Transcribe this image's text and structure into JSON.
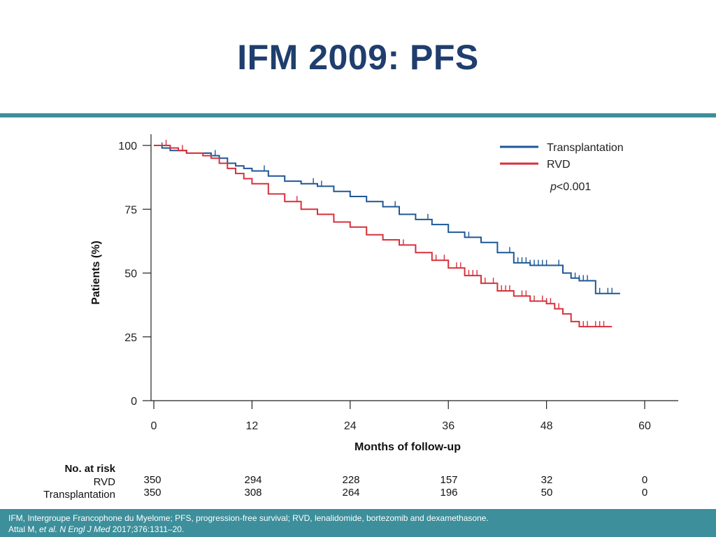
{
  "slide": {
    "title": "IFM 2009: PFS",
    "footer_line1": "IFM, Intergroupe Francophone du Myelome; PFS, progression-free survival; RVD, lenalidomide, bortezomib and dexamethasone.",
    "footer_line2_pre": "Attal M, ",
    "footer_line2_em": "et al. N Engl J Med",
    "footer_line2_post": " 2017;376:1311–20."
  },
  "risk_table": {
    "header": "No. at risk",
    "rows": [
      {
        "label": "RVD",
        "values": [
          "350",
          "294",
          "228",
          "157",
          "32",
          "0"
        ]
      },
      {
        "label": "Transplantation",
        "values": [
          "350",
          "308",
          "264",
          "196",
          "50",
          "0"
        ]
      }
    ]
  },
  "chart_data": {
    "type": "line",
    "title": "",
    "xlabel": "Months of follow-up",
    "ylabel": "Patients (%)",
    "xlim": [
      0,
      60
    ],
    "ylim": [
      0,
      100
    ],
    "xticks": [
      0,
      12,
      24,
      36,
      48,
      60
    ],
    "yticks": [
      0,
      25,
      50,
      75,
      100
    ],
    "grid": false,
    "legend_position": "top-right",
    "annotation": "p<0.001",
    "series": [
      {
        "name": "Transplantation",
        "color": "#1f5797",
        "x": [
          0,
          1,
          2,
          3,
          4,
          6,
          7,
          8,
          9,
          10,
          11,
          12,
          14,
          16,
          18,
          20,
          22,
          24,
          26,
          28,
          30,
          32,
          34,
          36,
          38,
          40,
          42,
          44,
          46,
          48,
          50,
          51,
          52,
          53,
          54,
          55,
          56,
          57
        ],
        "y": [
          100,
          99,
          98,
          98,
          97,
          97,
          96,
          95,
          93,
          92,
          91,
          90,
          88,
          86,
          85,
          84,
          82,
          80,
          78,
          76,
          73,
          71,
          69,
          66,
          64,
          62,
          58,
          54,
          53,
          53,
          50,
          48,
          47,
          47,
          42,
          42,
          42,
          42
        ]
      },
      {
        "name": "RVD",
        "color": "#d7303c",
        "x": [
          0,
          1,
          2,
          3,
          4,
          6,
          7,
          8,
          9,
          10,
          11,
          12,
          14,
          16,
          18,
          20,
          22,
          24,
          26,
          28,
          30,
          32,
          34,
          36,
          38,
          40,
          42,
          44,
          46,
          48,
          49,
          50,
          51,
          52,
          53,
          54,
          55,
          56
        ],
        "y": [
          100,
          100,
          99,
          98,
          97,
          96,
          95,
          93,
          91,
          89,
          87,
          85,
          81,
          78,
          75,
          73,
          70,
          68,
          65,
          63,
          61,
          58,
          55,
          52,
          49,
          46,
          43,
          41,
          39,
          38,
          36,
          34,
          31,
          29,
          29,
          29,
          29,
          29
        ]
      }
    ],
    "censor_marks": {
      "Transplantation": [
        1,
        7.5,
        13.5,
        19.5,
        20.5,
        26,
        29.5,
        33.5,
        38.5,
        43.5,
        44.5,
        45,
        45.5,
        46,
        46.5,
        47,
        47.5,
        48,
        49.5,
        50,
        51,
        51.5,
        52,
        52.5,
        53,
        54.5,
        55.5,
        56
      ],
      "RVD": [
        1.5,
        3.5,
        17.5,
        30.5,
        34.5,
        35.5,
        36,
        37,
        37.5,
        38.5,
        39,
        39.5,
        40,
        40.5,
        41.5,
        42,
        42.5,
        43,
        43.5,
        44,
        45,
        45.5,
        46,
        46.5,
        47.5,
        48,
        48.5,
        49,
        49.5,
        52.5,
        53,
        54,
        54.5,
        55
      ]
    }
  }
}
